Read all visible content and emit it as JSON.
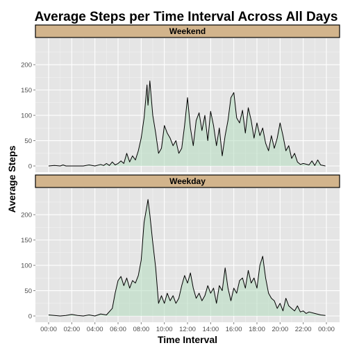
{
  "colors": {
    "panel_bg": "#e5e5e5",
    "grid_major": "#ffffff",
    "grid_minor": "#f2f2f2",
    "strip_bg": "#d2b48c",
    "area_fill": "#b5dcc0",
    "line": "#000000"
  },
  "chart_data": {
    "type": "area",
    "title": "Average Steps per Time Interval Across All Days",
    "xlabel": "Time Interval",
    "ylabel": "Average Steps",
    "x_unit": "time of day (HH:MM, 5-minute intervals)",
    "xlim": [
      "00:00",
      "24:00"
    ],
    "ylim": [
      0,
      240
    ],
    "x_ticks": [
      "00:00",
      "02:00",
      "04:00",
      "06:00",
      "08:00",
      "10:00",
      "12:00",
      "14:00",
      "16:00",
      "18:00",
      "20:00",
      "22:00",
      "00:00"
    ],
    "y_ticks": [
      0,
      50,
      100,
      150,
      200
    ],
    "grid": true,
    "panels": [
      {
        "label": "Weekend",
        "points": [
          [
            "00:00",
            0
          ],
          [
            "00:30",
            1
          ],
          [
            "01:00",
            0
          ],
          [
            "01:15",
            2
          ],
          [
            "01:30",
            0
          ],
          [
            "02:00",
            0
          ],
          [
            "03:00",
            0
          ],
          [
            "03:30",
            2
          ],
          [
            "04:00",
            0
          ],
          [
            "04:30",
            3
          ],
          [
            "04:45",
            1
          ],
          [
            "05:00",
            5
          ],
          [
            "05:15",
            1
          ],
          [
            "05:30",
            8
          ],
          [
            "05:45",
            2
          ],
          [
            "06:00",
            5
          ],
          [
            "06:15",
            10
          ],
          [
            "06:30",
            5
          ],
          [
            "06:45",
            25
          ],
          [
            "07:00",
            8
          ],
          [
            "07:15",
            20
          ],
          [
            "07:30",
            12
          ],
          [
            "07:45",
            30
          ],
          [
            "08:00",
            55
          ],
          [
            "08:15",
            95
          ],
          [
            "08:30",
            160
          ],
          [
            "08:35",
            120
          ],
          [
            "08:45",
            168
          ],
          [
            "09:00",
            100
          ],
          [
            "09:15",
            65
          ],
          [
            "09:30",
            25
          ],
          [
            "09:45",
            35
          ],
          [
            "10:00",
            80
          ],
          [
            "10:15",
            65
          ],
          [
            "10:30",
            55
          ],
          [
            "10:45",
            40
          ],
          [
            "11:00",
            50
          ],
          [
            "11:15",
            25
          ],
          [
            "11:30",
            35
          ],
          [
            "11:45",
            80
          ],
          [
            "12:00",
            135
          ],
          [
            "12:15",
            75
          ],
          [
            "12:30",
            40
          ],
          [
            "12:45",
            90
          ],
          [
            "13:00",
            105
          ],
          [
            "13:15",
            70
          ],
          [
            "13:30",
            100
          ],
          [
            "13:45",
            50
          ],
          [
            "14:00",
            108
          ],
          [
            "14:15",
            80
          ],
          [
            "14:30",
            40
          ],
          [
            "14:45",
            75
          ],
          [
            "15:00",
            20
          ],
          [
            "15:15",
            60
          ],
          [
            "15:30",
            90
          ],
          [
            "15:45",
            135
          ],
          [
            "16:00",
            145
          ],
          [
            "16:15",
            95
          ],
          [
            "16:30",
            85
          ],
          [
            "16:45",
            110
          ],
          [
            "17:00",
            65
          ],
          [
            "17:15",
            115
          ],
          [
            "17:30",
            90
          ],
          [
            "17:45",
            55
          ],
          [
            "18:00",
            85
          ],
          [
            "18:15",
            60
          ],
          [
            "18:30",
            75
          ],
          [
            "18:45",
            45
          ],
          [
            "19:00",
            30
          ],
          [
            "19:15",
            60
          ],
          [
            "19:30",
            35
          ],
          [
            "19:45",
            55
          ],
          [
            "20:00",
            85
          ],
          [
            "20:15",
            60
          ],
          [
            "20:30",
            30
          ],
          [
            "20:45",
            40
          ],
          [
            "21:00",
            15
          ],
          [
            "21:15",
            25
          ],
          [
            "21:30",
            8
          ],
          [
            "21:45",
            3
          ],
          [
            "22:00",
            5
          ],
          [
            "22:30",
            2
          ],
          [
            "22:45",
            10
          ],
          [
            "23:00",
            1
          ],
          [
            "23:15",
            12
          ],
          [
            "23:30",
            2
          ],
          [
            "23:55",
            0
          ]
        ]
      },
      {
        "label": "Weekday",
        "points": [
          [
            "00:00",
            2
          ],
          [
            "00:30",
            1
          ],
          [
            "01:00",
            0
          ],
          [
            "01:30",
            1
          ],
          [
            "02:00",
            3
          ],
          [
            "02:30",
            1
          ],
          [
            "03:00",
            0
          ],
          [
            "03:30",
            2
          ],
          [
            "04:00",
            0
          ],
          [
            "04:30",
            4
          ],
          [
            "05:00",
            2
          ],
          [
            "05:30",
            15
          ],
          [
            "05:45",
            45
          ],
          [
            "06:00",
            70
          ],
          [
            "06:15",
            78
          ],
          [
            "06:30",
            60
          ],
          [
            "06:45",
            75
          ],
          [
            "07:00",
            55
          ],
          [
            "07:15",
            70
          ],
          [
            "07:30",
            65
          ],
          [
            "07:45",
            80
          ],
          [
            "08:00",
            110
          ],
          [
            "08:15",
            185
          ],
          [
            "08:30",
            218
          ],
          [
            "08:35",
            230
          ],
          [
            "08:45",
            200
          ],
          [
            "09:00",
            145
          ],
          [
            "09:15",
            95
          ],
          [
            "09:30",
            25
          ],
          [
            "09:45",
            40
          ],
          [
            "10:00",
            25
          ],
          [
            "10:15",
            45
          ],
          [
            "10:30",
            30
          ],
          [
            "10:45",
            40
          ],
          [
            "11:00",
            25
          ],
          [
            "11:15",
            35
          ],
          [
            "11:30",
            60
          ],
          [
            "11:45",
            80
          ],
          [
            "12:00",
            65
          ],
          [
            "12:15",
            85
          ],
          [
            "12:30",
            55
          ],
          [
            "12:45",
            35
          ],
          [
            "13:00",
            45
          ],
          [
            "13:15",
            30
          ],
          [
            "13:30",
            40
          ],
          [
            "13:45",
            60
          ],
          [
            "14:00",
            45
          ],
          [
            "14:15",
            55
          ],
          [
            "14:30",
            25
          ],
          [
            "14:45",
            60
          ],
          [
            "15:00",
            50
          ],
          [
            "15:15",
            95
          ],
          [
            "15:30",
            55
          ],
          [
            "15:45",
            30
          ],
          [
            "16:00",
            55
          ],
          [
            "16:15",
            45
          ],
          [
            "16:30",
            70
          ],
          [
            "16:45",
            75
          ],
          [
            "17:00",
            55
          ],
          [
            "17:15",
            90
          ],
          [
            "17:30",
            65
          ],
          [
            "17:45",
            75
          ],
          [
            "18:00",
            55
          ],
          [
            "18:15",
            100
          ],
          [
            "18:30",
            118
          ],
          [
            "18:45",
            75
          ],
          [
            "19:00",
            45
          ],
          [
            "19:15",
            35
          ],
          [
            "19:30",
            30
          ],
          [
            "19:45",
            15
          ],
          [
            "20:00",
            25
          ],
          [
            "20:15",
            10
          ],
          [
            "20:30",
            35
          ],
          [
            "20:45",
            20
          ],
          [
            "21:00",
            15
          ],
          [
            "21:15",
            10
          ],
          [
            "21:30",
            20
          ],
          [
            "21:45",
            8
          ],
          [
            "22:00",
            10
          ],
          [
            "22:15",
            5
          ],
          [
            "22:30",
            8
          ],
          [
            "23:00",
            5
          ],
          [
            "23:30",
            2
          ],
          [
            "23:55",
            1
          ]
        ]
      }
    ]
  }
}
